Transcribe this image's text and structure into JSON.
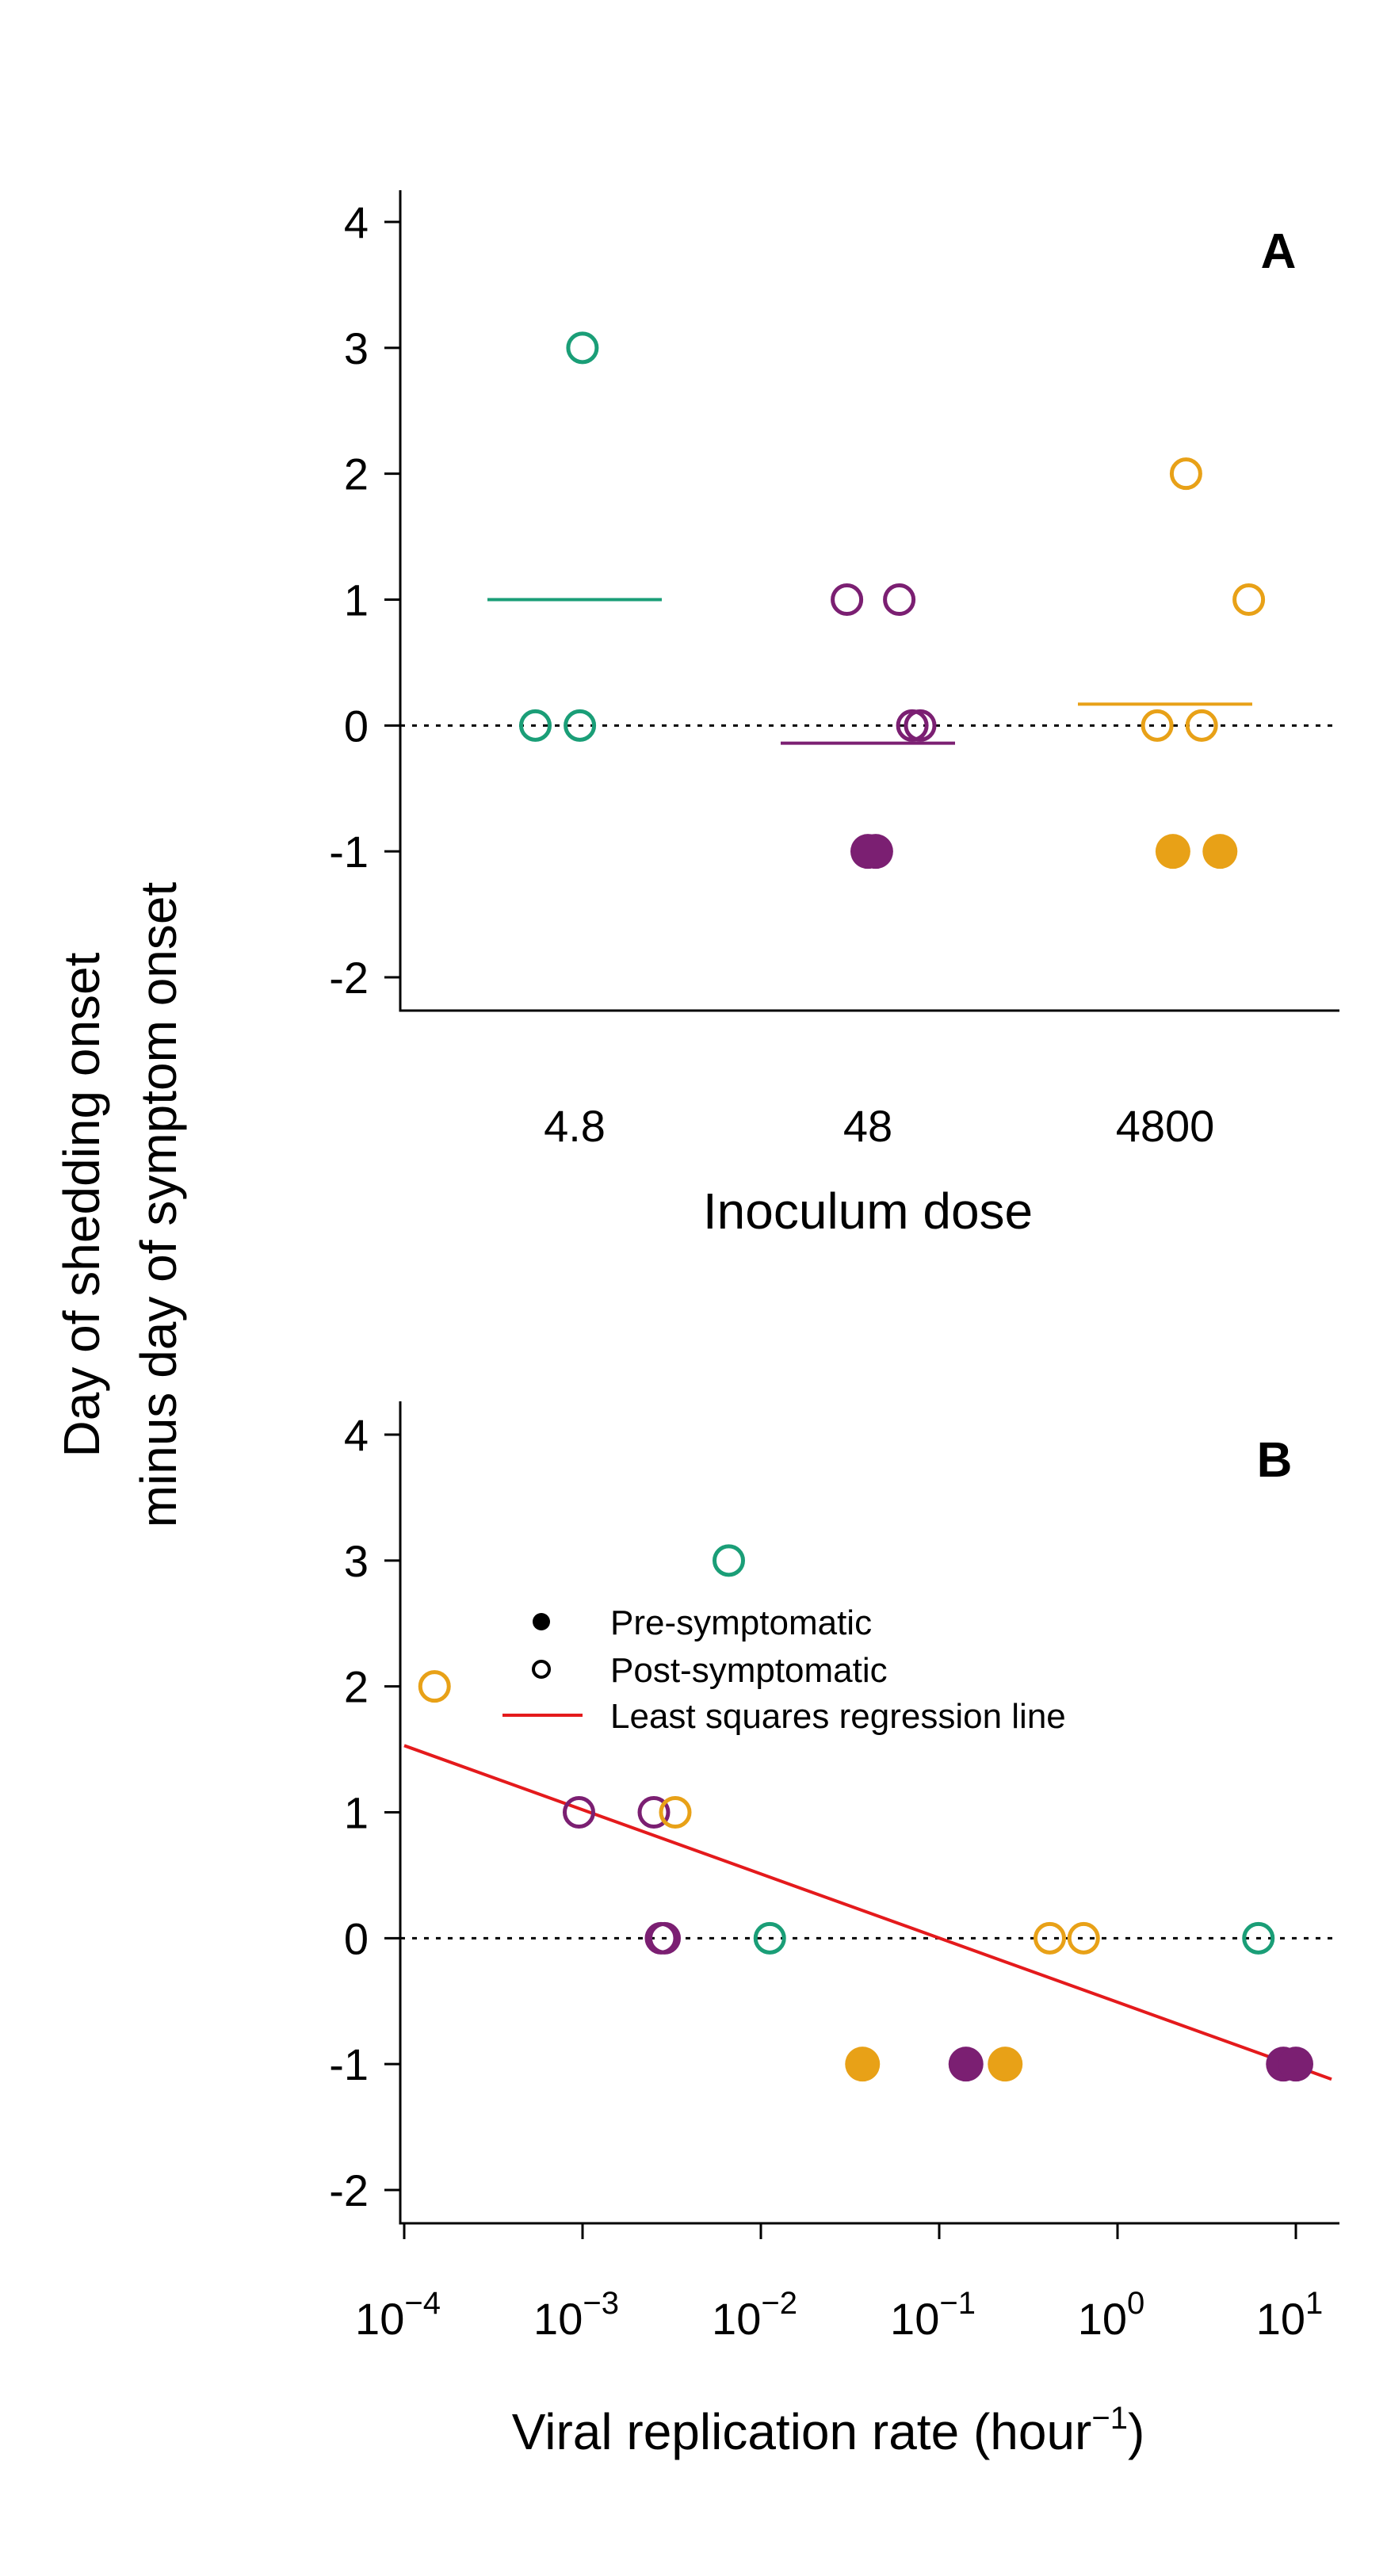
{
  "shared_ylabel": [
    "Day of shedding onset",
    "minus day of symptom onset"
  ],
  "colors": {
    "dose_4.8": "#1a9e77",
    "dose_48": "#7b1f72",
    "dose_4800": "#e8a117",
    "regression": "#e41a1c",
    "reference": "#000000"
  },
  "chart_data": [
    {
      "panel": "A",
      "type": "scatter",
      "xlabel": "Inoculum dose",
      "categories": [
        "4.8",
        "48",
        "4800"
      ],
      "ylim": [
        -2.25,
        4.25
      ],
      "yticks": [
        -2,
        -1,
        0,
        1,
        2,
        3,
        4
      ],
      "reference_line_y": 0,
      "series": [
        {
          "category": "4.8",
          "color_key": "dose_4.8",
          "mean": 1.0,
          "points": [
            {
              "x": 0.03,
              "y": 3,
              "filled": false
            },
            {
              "x": -0.15,
              "y": 0,
              "filled": false
            },
            {
              "x": 0.02,
              "y": 0,
              "filled": false
            }
          ]
        },
        {
          "category": "48",
          "color_key": "dose_48",
          "mean": -0.14,
          "points": [
            {
              "x": -0.08,
              "y": 1,
              "filled": false
            },
            {
              "x": 0.12,
              "y": 1,
              "filled": false
            },
            {
              "x": 0.17,
              "y": 0,
              "filled": false
            },
            {
              "x": 0.2,
              "y": 0,
              "filled": false
            },
            {
              "x": 0.0,
              "y": -1,
              "filled": true
            },
            {
              "x": 0.03,
              "y": -1,
              "filled": true
            }
          ]
        },
        {
          "category": "4800",
          "color_key": "dose_4800",
          "mean": 0.17,
          "points": [
            {
              "x": 0.08,
              "y": 2,
              "filled": false
            },
            {
              "x": 0.32,
              "y": 1,
              "filled": false
            },
            {
              "x": -0.03,
              "y": 0,
              "filled": false
            },
            {
              "x": 0.14,
              "y": 0,
              "filled": false
            },
            {
              "x": 0.03,
              "y": -1,
              "filled": true
            },
            {
              "x": 0.21,
              "y": -1,
              "filled": true
            }
          ]
        }
      ]
    },
    {
      "panel": "B",
      "type": "scatter",
      "xlabel": "Viral replication rate (hour",
      "xlabel_sup": "−1",
      "xlabel_end": ")",
      "xscale": "log",
      "xlim_log10": [
        -4.0,
        1.2
      ],
      "xticks_log10": [
        -4,
        -3,
        -2,
        -1,
        0,
        1
      ],
      "xtick_labels": [
        {
          "base": "10",
          "exp": "−4"
        },
        {
          "base": "10",
          "exp": "−3"
        },
        {
          "base": "10",
          "exp": "−2"
        },
        {
          "base": "10",
          "exp": "−1"
        },
        {
          "base": "10",
          "exp": "0"
        },
        {
          "base": "10",
          "exp": "1"
        }
      ],
      "ylim": [
        -2.25,
        4.25
      ],
      "yticks": [
        -2,
        -1,
        0,
        1,
        2,
        3,
        4
      ],
      "reference_line_y": 0,
      "regression": {
        "log10x_start": -4.0,
        "y_start": 1.53,
        "log10x_end": 1.2,
        "y_end": -1.12
      },
      "legend": {
        "position": "top-center",
        "items": [
          {
            "label": "Pre-symptomatic",
            "kind": "filled"
          },
          {
            "label": "Post-symptomatic",
            "kind": "open"
          },
          {
            "label": "Least squares regression line",
            "kind": "line"
          }
        ]
      },
      "points": [
        {
          "log10x": -3.83,
          "y": 2,
          "color_key": "dose_4800",
          "filled": false
        },
        {
          "log10x": -3.02,
          "y": 1,
          "color_key": "dose_48",
          "filled": false
        },
        {
          "log10x": -2.6,
          "y": 1,
          "color_key": "dose_48",
          "filled": false
        },
        {
          "log10x": -2.48,
          "y": 1,
          "color_key": "dose_4800",
          "filled": false
        },
        {
          "log10x": -2.56,
          "y": 0,
          "color_key": "dose_48",
          "filled": false
        },
        {
          "log10x": -2.54,
          "y": 0,
          "color_key": "dose_48",
          "filled": false
        },
        {
          "log10x": -2.18,
          "y": 3,
          "color_key": "dose_4.8",
          "filled": false
        },
        {
          "log10x": -1.95,
          "y": 0,
          "color_key": "dose_4.8",
          "filled": false
        },
        {
          "log10x": -1.43,
          "y": -1,
          "color_key": "dose_4800",
          "filled": true
        },
        {
          "log10x": -0.85,
          "y": -1,
          "color_key": "dose_48",
          "filled": true
        },
        {
          "log10x": -0.63,
          "y": -1,
          "color_key": "dose_4800",
          "filled": true
        },
        {
          "log10x": -0.38,
          "y": 0,
          "color_key": "dose_4800",
          "filled": false
        },
        {
          "log10x": -0.19,
          "y": 0,
          "color_key": "dose_4800",
          "filled": false
        },
        {
          "log10x": 0.79,
          "y": 0,
          "color_key": "dose_4.8",
          "filled": false
        },
        {
          "log10x": 0.93,
          "y": -1,
          "color_key": "dose_48",
          "filled": true
        },
        {
          "log10x": 1.0,
          "y": -1,
          "color_key": "dose_48",
          "filled": true
        }
      ]
    }
  ]
}
